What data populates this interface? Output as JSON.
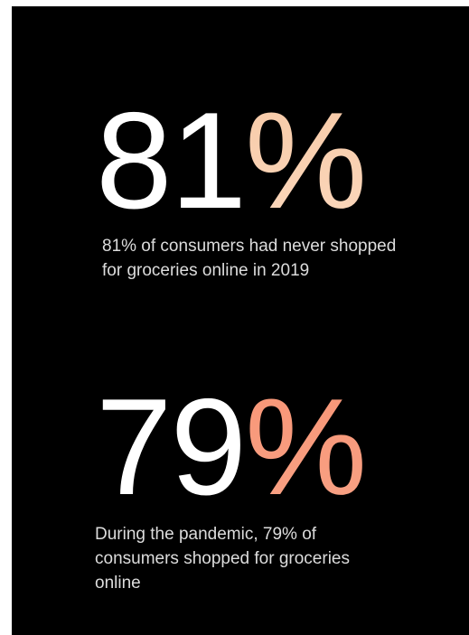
{
  "stats": [
    {
      "number": "81",
      "unit": "%",
      "unit_color": "#f8cfaf",
      "caption": "81% of consumers had never shopped for groceries online in 2019"
    },
    {
      "number": "79",
      "unit": "%",
      "unit_color": "#f89a7c",
      "caption": "During the pandemic, 79% of consumers shopped for groceries online"
    }
  ],
  "colors": {
    "background": "#000000",
    "number": "#ffffff",
    "caption": "#dcdcdc"
  }
}
